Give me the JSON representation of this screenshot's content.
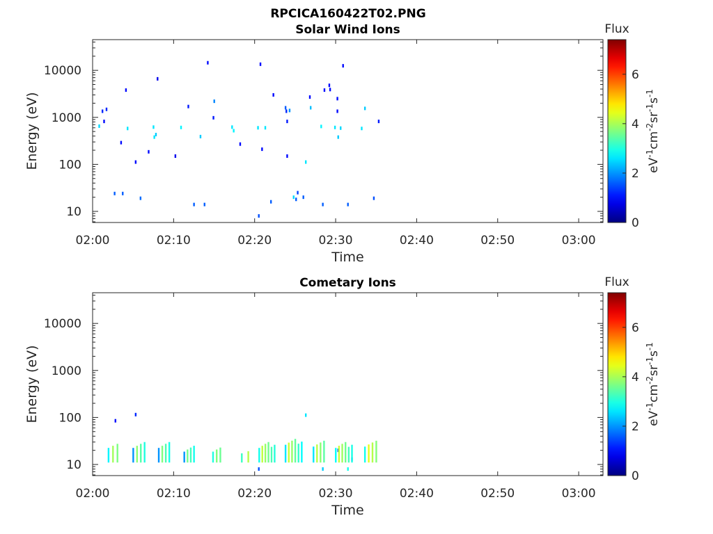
{
  "figure_title": "RPCICA160422T02.PNG",
  "chart_data": [
    {
      "type": "heatmap",
      "title": "Solar Wind Ions",
      "xlabel": "Time",
      "ylabel": "Energy (eV)",
      "x_ticks": [
        "02:00",
        "02:10",
        "02:20",
        "02:30",
        "02:40",
        "02:50",
        "03:00"
      ],
      "xlim_minutes": [
        0,
        63
      ],
      "y_scale": "log",
      "y_ticks": [
        10,
        100,
        1000,
        10000
      ],
      "ylim": [
        5.8,
        45000
      ],
      "colorbar": {
        "label_top": "Flux",
        "label": "eV-1cm-2sr-1s-1",
        "ticks": [
          0,
          2,
          4,
          6
        ],
        "range": [
          0,
          7.4
        ],
        "colormap": "jet"
      },
      "grid": false,
      "points": [
        {
          "t": 0.8,
          "e": 650,
          "v": 2.5
        },
        {
          "t": 1.2,
          "e": 1350,
          "v": 1.2
        },
        {
          "t": 1.4,
          "e": 820,
          "v": 1.0
        },
        {
          "t": 1.7,
          "e": 1480,
          "v": 1.2
        },
        {
          "t": 2.7,
          "e": 24,
          "v": 1.6
        },
        {
          "t": 3.5,
          "e": 290,
          "v": 1.0
        },
        {
          "t": 3.7,
          "e": 24,
          "v": 1.6
        },
        {
          "t": 4.1,
          "e": 3800,
          "v": 1.0
        },
        {
          "t": 4.3,
          "e": 580,
          "v": 2.6
        },
        {
          "t": 5.3,
          "e": 112,
          "v": 1.0
        },
        {
          "t": 5.9,
          "e": 19,
          "v": 1.7
        },
        {
          "t": 6.9,
          "e": 185,
          "v": 1.0
        },
        {
          "t": 7.5,
          "e": 620,
          "v": 2.6
        },
        {
          "t": 7.6,
          "e": 380,
          "v": 2.6
        },
        {
          "t": 7.8,
          "e": 430,
          "v": 2.4
        },
        {
          "t": 8.0,
          "e": 6600,
          "v": 0.8
        },
        {
          "t": 10.2,
          "e": 150,
          "v": 0.8
        },
        {
          "t": 10.9,
          "e": 610,
          "v": 2.7
        },
        {
          "t": 11.8,
          "e": 1700,
          "v": 1.1
        },
        {
          "t": 12.5,
          "e": 14,
          "v": 1.6
        },
        {
          "t": 13.3,
          "e": 390,
          "v": 2.4
        },
        {
          "t": 13.8,
          "e": 14,
          "v": 1.6
        },
        {
          "t": 14.2,
          "e": 14500,
          "v": 1.0
        },
        {
          "t": 14.9,
          "e": 980,
          "v": 1.1
        },
        {
          "t": 15.0,
          "e": 2200,
          "v": 1.9
        },
        {
          "t": 17.2,
          "e": 620,
          "v": 2.6
        },
        {
          "t": 17.4,
          "e": 520,
          "v": 2.7
        },
        {
          "t": 18.2,
          "e": 270,
          "v": 1.0
        },
        {
          "t": 20.4,
          "e": 600,
          "v": 2.6
        },
        {
          "t": 20.5,
          "e": 8,
          "v": 1.5
        },
        {
          "t": 20.7,
          "e": 13500,
          "v": 1.0
        },
        {
          "t": 20.9,
          "e": 210,
          "v": 1.0
        },
        {
          "t": 21.3,
          "e": 600,
          "v": 2.6
        },
        {
          "t": 22.0,
          "e": 16,
          "v": 1.6
        },
        {
          "t": 22.3,
          "e": 3000,
          "v": 1.0
        },
        {
          "t": 23.8,
          "e": 1600,
          "v": 1.6
        },
        {
          "t": 23.9,
          "e": 1350,
          "v": 1.2
        },
        {
          "t": 24.0,
          "e": 150,
          "v": 1.0
        },
        {
          "t": 24.0,
          "e": 820,
          "v": 1.1
        },
        {
          "t": 24.3,
          "e": 1400,
          "v": 2.0
        },
        {
          "t": 24.8,
          "e": 20,
          "v": 2.5
        },
        {
          "t": 25.1,
          "e": 18,
          "v": 1.6
        },
        {
          "t": 25.3,
          "e": 25,
          "v": 1.4
        },
        {
          "t": 26.0,
          "e": 20,
          "v": 1.6
        },
        {
          "t": 26.3,
          "e": 112,
          "v": 2.6
        },
        {
          "t": 26.8,
          "e": 2700,
          "v": 1.0
        },
        {
          "t": 26.9,
          "e": 1600,
          "v": 2.3
        },
        {
          "t": 28.2,
          "e": 640,
          "v": 2.7
        },
        {
          "t": 28.4,
          "e": 14,
          "v": 1.6
        },
        {
          "t": 28.6,
          "e": 3800,
          "v": 1.0
        },
        {
          "t": 29.2,
          "e": 4800,
          "v": 1.0
        },
        {
          "t": 29.3,
          "e": 3900,
          "v": 1.0
        },
        {
          "t": 29.9,
          "e": 610,
          "v": 2.6
        },
        {
          "t": 30.2,
          "e": 2500,
          "v": 1.0
        },
        {
          "t": 30.2,
          "e": 1350,
          "v": 1.0
        },
        {
          "t": 30.3,
          "e": 380,
          "v": 2.4
        },
        {
          "t": 30.6,
          "e": 590,
          "v": 2.5
        },
        {
          "t": 30.9,
          "e": 12500,
          "v": 1.0
        },
        {
          "t": 31.5,
          "e": 14,
          "v": 1.6
        },
        {
          "t": 33.2,
          "e": 580,
          "v": 2.6
        },
        {
          "t": 33.6,
          "e": 1550,
          "v": 2.4
        },
        {
          "t": 34.7,
          "e": 19,
          "v": 1.5
        },
        {
          "t": 35.3,
          "e": 820,
          "v": 1.1
        }
      ]
    },
    {
      "type": "heatmap",
      "title": "Cometary Ions",
      "xlabel": "Time",
      "ylabel": "Energy (eV)",
      "x_ticks": [
        "02:00",
        "02:10",
        "02:20",
        "02:30",
        "02:40",
        "02:50",
        "03:00"
      ],
      "xlim_minutes": [
        0,
        63
      ],
      "y_scale": "log",
      "y_ticks": [
        10,
        100,
        1000,
        10000
      ],
      "ylim": [
        5.8,
        45000
      ],
      "colorbar": {
        "label_top": "Flux",
        "label": "eV-1cm-2sr-1s-1",
        "ticks": [
          0,
          2,
          4,
          6
        ],
        "range": [
          0,
          7.4
        ],
        "colormap": "jet"
      },
      "grid": false,
      "points": [
        {
          "t": 2.8,
          "e": 85,
          "v": 1.0
        },
        {
          "t": 5.3,
          "e": 115,
          "v": 1.2
        },
        {
          "t": 26.3,
          "e": 112,
          "v": 2.6
        },
        {
          "t": 30.3,
          "e": 20,
          "v": 1.6
        },
        {
          "t": 32.0,
          "e": 13,
          "v": 1.6
        },
        {
          "t": 20.5,
          "e": 8,
          "v": 1.5
        },
        {
          "t": 28.4,
          "e": 8,
          "v": 2.4
        },
        {
          "t": 31.5,
          "e": 8,
          "v": 2.9
        }
      ],
      "bands": [
        {
          "t": 2.5,
          "w": 1.1,
          "e_lo": 11,
          "e_hi": 30,
          "v_lo": 2.7,
          "v_hi": 4.1
        },
        {
          "t": 5.7,
          "w": 1.4,
          "e_lo": 11,
          "e_hi": 30,
          "v_lo": 2.0,
          "v_hi": 4.0
        },
        {
          "t": 8.8,
          "w": 1.3,
          "e_lo": 11,
          "e_hi": 30,
          "v_lo": 2.0,
          "v_hi": 3.9
        },
        {
          "t": 11.9,
          "w": 1.2,
          "e_lo": 11,
          "e_hi": 25,
          "v_lo": 2.0,
          "v_hi": 3.8
        },
        {
          "t": 15.3,
          "w": 0.9,
          "e_lo": 11,
          "e_hi": 25,
          "v_lo": 3.0,
          "v_hi": 3.8
        },
        {
          "t": 18.8,
          "w": 0.8,
          "e_lo": 11,
          "e_hi": 23,
          "v_lo": 3.2,
          "v_hi": 4.2
        },
        {
          "t": 21.5,
          "w": 1.9,
          "e_lo": 11,
          "e_hi": 30,
          "v_lo": 2.9,
          "v_hi": 4.3
        },
        {
          "t": 24.8,
          "w": 2.0,
          "e_lo": 11,
          "e_hi": 35,
          "v_lo": 2.6,
          "v_hi": 4.4
        },
        {
          "t": 27.9,
          "w": 1.3,
          "e_lo": 11,
          "e_hi": 32,
          "v_lo": 2.6,
          "v_hi": 4.3
        },
        {
          "t": 31.0,
          "w": 2.0,
          "e_lo": 11,
          "e_hi": 30,
          "v_lo": 2.8,
          "v_hi": 4.4
        },
        {
          "t": 34.3,
          "w": 1.4,
          "e_lo": 11,
          "e_hi": 32,
          "v_lo": 2.9,
          "v_hi": 4.6
        }
      ]
    }
  ]
}
